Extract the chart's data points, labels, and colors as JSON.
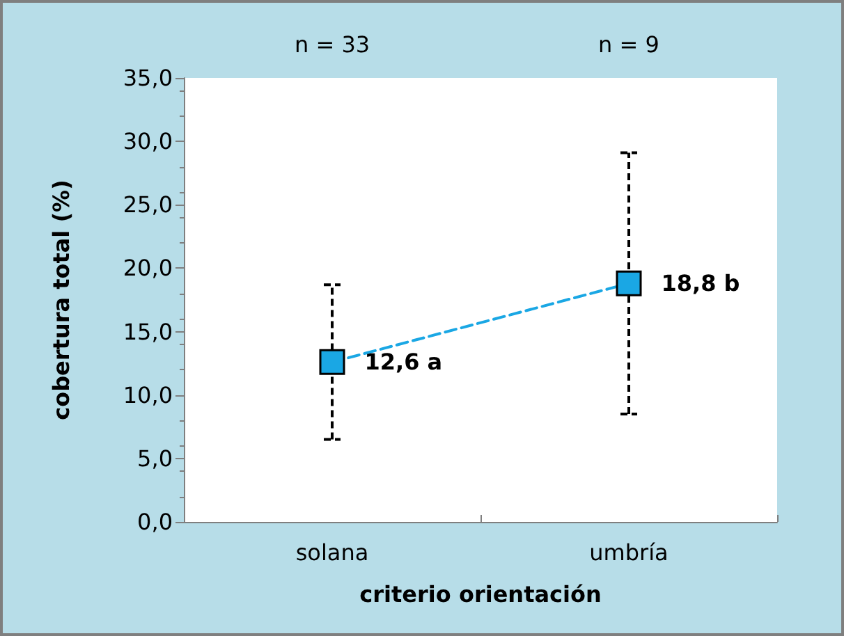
{
  "chart_data": {
    "type": "line",
    "xlabel": "criterio orientación",
    "ylabel": "cobertura total (%)",
    "categories": [
      "solana",
      "umbría"
    ],
    "series": [
      {
        "color": "#1aa7e4",
        "values": [
          12.6,
          18.8
        ],
        "errors": [
          [
            6.5,
            18.7
          ],
          [
            8.5,
            29.1
          ]
        ],
        "value_labels": [
          "12,6 a",
          "18,8 b"
        ]
      }
    ],
    "ylim": [
      0,
      35
    ],
    "yticks": [
      {
        "value": 0,
        "label": "0,0"
      },
      {
        "value": 5,
        "label": "5,0"
      },
      {
        "value": 10,
        "label": "10,0"
      },
      {
        "value": 15,
        "label": "15,0"
      },
      {
        "value": 20,
        "label": "20,0"
      },
      {
        "value": 25,
        "label": "25,0"
      },
      {
        "value": 30,
        "label": "30,0"
      },
      {
        "value": 35,
        "label": "35,0"
      }
    ],
    "annotations": [
      "n = 33",
      "n = 9"
    ],
    "marker": "square",
    "line_style": "dashed"
  }
}
